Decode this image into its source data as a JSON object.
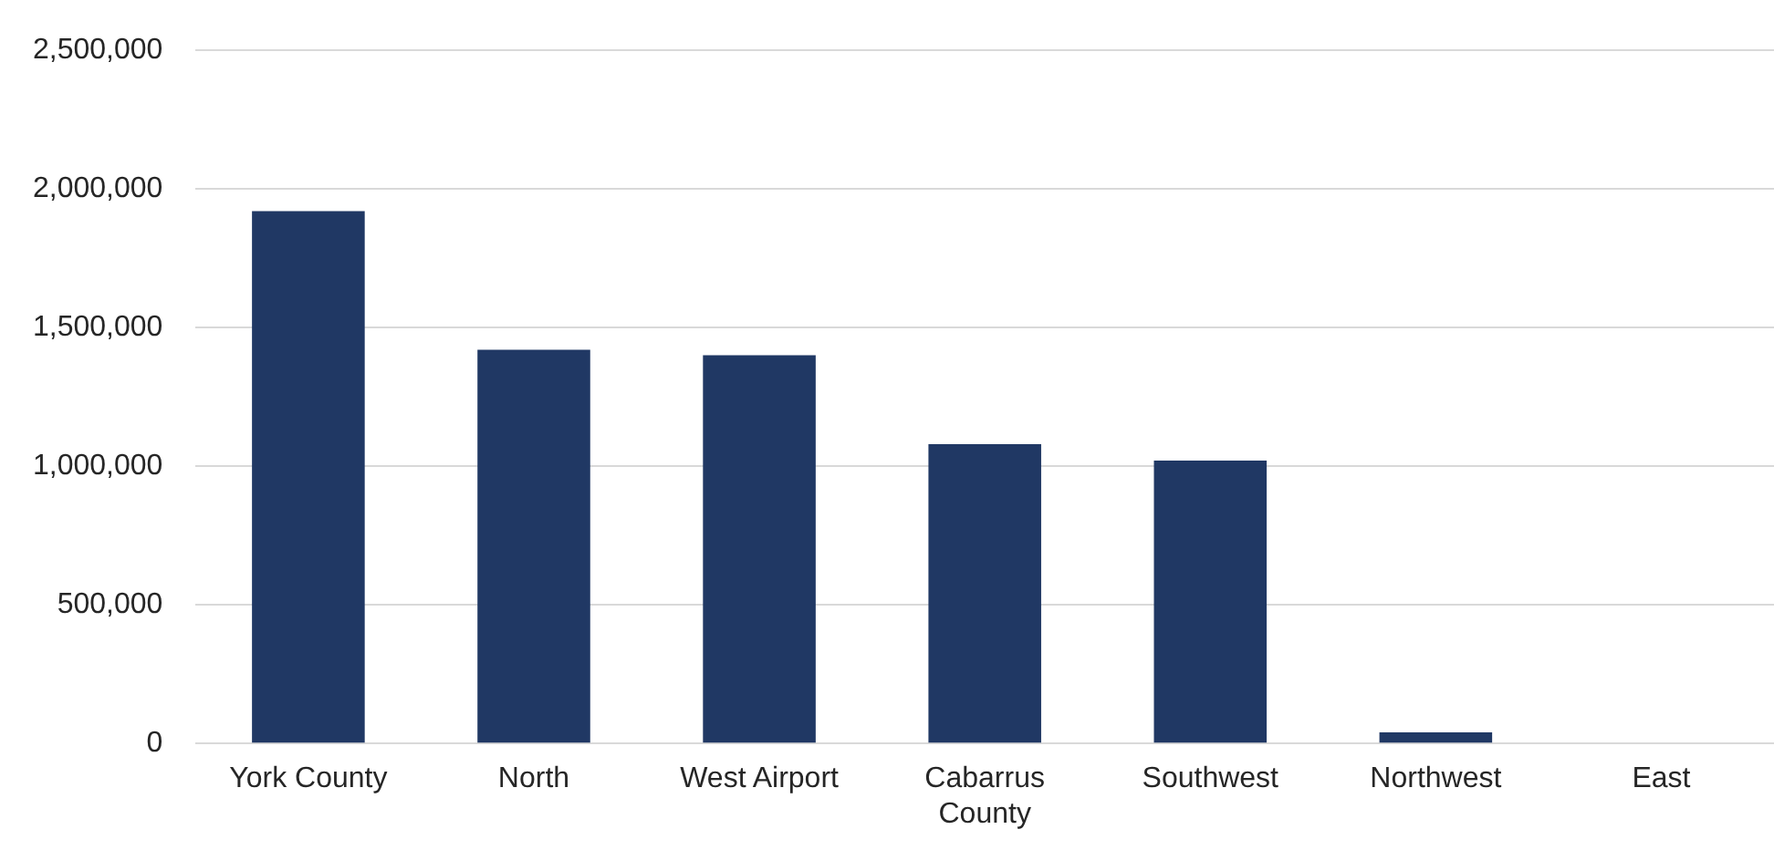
{
  "chart_data": {
    "type": "bar",
    "categories": [
      "York County",
      "North",
      "West Airport",
      "Cabarrus County",
      "Southwest",
      "Northwest",
      "East"
    ],
    "values": [
      1920000,
      1420000,
      1400000,
      1080000,
      1020000,
      40000,
      0
    ],
    "color": "#203864",
    "ylim": [
      0,
      2500000
    ],
    "yticks": [
      0,
      {
        "value": 500000,
        "label": "500,000"
      },
      {
        "value": 1000000,
        "label": "1,000,000"
      },
      {
        "value": 1500000,
        "label": "1,500,000"
      },
      {
        "value": 2000000,
        "label": "2,000,000"
      },
      {
        "value": 2500000,
        "label": "2,500,000"
      }
    ],
    "grid": "y",
    "legend": false
  }
}
